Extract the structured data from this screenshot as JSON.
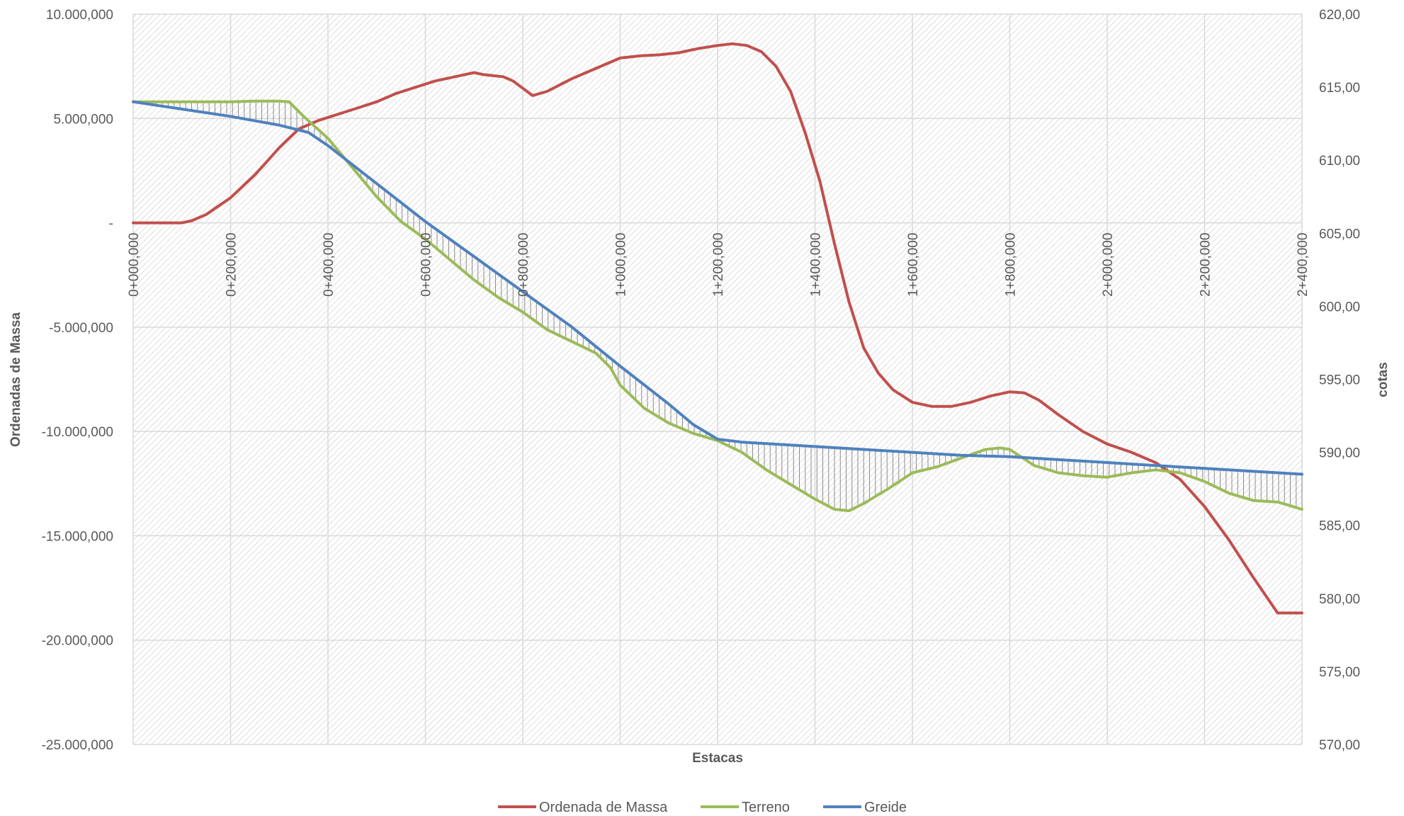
{
  "chart_data": {
    "type": "line",
    "title": "",
    "xlabel": "Estacas",
    "ylabel_left": "Ordenadas de Massa",
    "ylabel_right": "cotas",
    "xlim": [
      0,
      2400
    ],
    "ylim_left": [
      -25000000,
      10000000
    ],
    "ylim_right": [
      570,
      620
    ],
    "grid": true,
    "legend_position": "bottom",
    "x_tick_values": [
      0,
      200,
      400,
      600,
      800,
      1000,
      1200,
      1400,
      1600,
      1800,
      2000,
      2200,
      2400
    ],
    "x_tick_labels": [
      "0+000,000",
      "0+200,000",
      "0+400,000",
      "0+600,000",
      "0+800,000",
      "1+000,000",
      "1+200,000",
      "1+400,000",
      "1+600,000",
      "1+800,000",
      "2+000,000",
      "2+200,000",
      "2+400,000"
    ],
    "y_left_tick_values": [
      10000000,
      5000000,
      0,
      -5000000,
      -10000000,
      -15000000,
      -20000000,
      -25000000
    ],
    "y_left_tick_labels": [
      "10.000,000",
      "5.000,000",
      "-",
      "-5.000,000",
      "-10.000,000",
      "-15.000,000",
      "-20.000,000",
      "-25.000,000"
    ],
    "y_right_tick_values": [
      620,
      615,
      610,
      605,
      600,
      595,
      590,
      585,
      580,
      575,
      570
    ],
    "y_right_tick_labels": [
      "620,00",
      "615,00",
      "610,00",
      "605,00",
      "600,00",
      "595,00",
      "590,00",
      "585,00",
      "580,00",
      "575,00",
      "570,00"
    ],
    "series": [
      {
        "name": "Ordenada de Massa",
        "axis": "left",
        "color": "#C0504D",
        "x": [
          0,
          100,
          120,
          150,
          200,
          250,
          300,
          340,
          380,
          420,
          460,
          500,
          540,
          580,
          620,
          660,
          700,
          720,
          760,
          780,
          820,
          850,
          900,
          950,
          1000,
          1040,
          1080,
          1120,
          1160,
          1200,
          1230,
          1260,
          1290,
          1320,
          1350,
          1380,
          1410,
          1440,
          1470,
          1500,
          1530,
          1560,
          1600,
          1640,
          1680,
          1720,
          1760,
          1800,
          1830,
          1860,
          1900,
          1950,
          2000,
          2050,
          2100,
          2150,
          2200,
          2250,
          2300,
          2350,
          2400
        ],
        "y": [
          0,
          0,
          100000,
          400000,
          1200000,
          2300000,
          3600000,
          4500000,
          4900000,
          5200000,
          5500000,
          5800000,
          6200000,
          6500000,
          6800000,
          7000000,
          7200000,
          7100000,
          7000000,
          6800000,
          6100000,
          6300000,
          6900000,
          7400000,
          7900000,
          8000000,
          8050000,
          8150000,
          8350000,
          8500000,
          8580000,
          8500000,
          8200000,
          7500000,
          6300000,
          4300000,
          2000000,
          -1000000,
          -3800000,
          -6000000,
          -7200000,
          -8000000,
          -8600000,
          -8800000,
          -8800000,
          -8600000,
          -8300000,
          -8100000,
          -8150000,
          -8500000,
          -9200000,
          -10000000,
          -10600000,
          -11000000,
          -11500000,
          -12300000,
          -13600000,
          -15200000,
          -17000000,
          -18700000,
          -18700000
        ]
      },
      {
        "name": "Terreno",
        "axis": "right",
        "color": "#9BBB59",
        "x": [
          0,
          100,
          200,
          250,
          300,
          320,
          350,
          400,
          450,
          500,
          550,
          600,
          650,
          700,
          750,
          800,
          850,
          900,
          950,
          980,
          1000,
          1050,
          1100,
          1150,
          1200,
          1250,
          1300,
          1350,
          1400,
          1440,
          1470,
          1500,
          1550,
          1600,
          1650,
          1700,
          1750,
          1780,
          1800,
          1850,
          1900,
          1950,
          2000,
          2050,
          2100,
          2150,
          2200,
          2250,
          2300,
          2350,
          2400
        ],
        "y": [
          614.0,
          614.0,
          614.0,
          614.05,
          614.05,
          614.0,
          613.0,
          611.5,
          609.5,
          607.5,
          605.8,
          604.6,
          603.2,
          601.8,
          600.6,
          599.6,
          598.4,
          597.6,
          596.8,
          595.8,
          594.6,
          593.0,
          592.0,
          591.3,
          590.8,
          590.0,
          588.8,
          587.8,
          586.8,
          586.1,
          586.0,
          586.5,
          587.5,
          588.6,
          589.0,
          589.6,
          590.2,
          590.3,
          590.2,
          589.1,
          588.6,
          588.4,
          588.3,
          588.6,
          588.8,
          588.6,
          588.0,
          587.2,
          586.7,
          586.6,
          586.1
        ]
      },
      {
        "name": "Greide",
        "axis": "right",
        "color": "#4F81BD",
        "x": [
          0,
          100,
          200,
          300,
          360,
          400,
          500,
          600,
          700,
          800,
          900,
          1000,
          1100,
          1150,
          1200,
          1250,
          1300,
          1400,
          1500,
          1600,
          1700,
          1800,
          1900,
          2000,
          2100,
          2200,
          2300,
          2400
        ],
        "y": [
          614.0,
          613.5,
          613.0,
          612.4,
          611.9,
          611.0,
          608.4,
          605.8,
          603.4,
          601.0,
          598.6,
          595.9,
          593.3,
          591.9,
          590.9,
          590.7,
          590.6,
          590.4,
          590.2,
          590.0,
          589.8,
          589.7,
          589.5,
          589.3,
          589.1,
          588.9,
          588.7,
          588.5
        ]
      }
    ]
  }
}
